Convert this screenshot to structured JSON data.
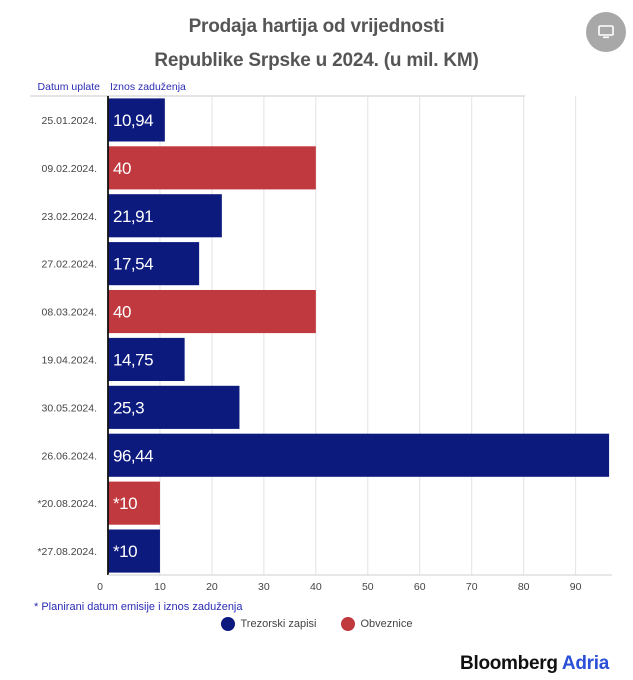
{
  "title": {
    "line1": "Prodaja hartija od vrijednosti",
    "line2": "Republike Srpske u 2024. (u mil. KM)"
  },
  "menu": {
    "icon": "monitor-icon"
  },
  "chart_data": {
    "type": "bar",
    "orientation": "horizontal",
    "col_header_category": "Datum uplate",
    "col_header_value": "Iznos zaduženja",
    "categories": [
      "25.01.2024.",
      "09.02.2024.",
      "23.02.2024.",
      "27.02.2024.",
      "08.03.2024.",
      "19.04.2024.",
      "30.05.2024.",
      "26.06.2024.",
      "*20.08.2024.",
      "*27.08.2024."
    ],
    "values": [
      10.94,
      40,
      21.91,
      17.54,
      40,
      14.75,
      25.3,
      96.44,
      10,
      10
    ],
    "value_labels": [
      "10,94",
      "40",
      "21,91",
      "17,54",
      "40",
      "14,75",
      "25,3",
      "96,44",
      "*10",
      "*10"
    ],
    "series_type": [
      "trezor",
      "obveznice",
      "trezor",
      "trezor",
      "obveznice",
      "trezor",
      "trezor",
      "trezor",
      "obveznice",
      "trezor"
    ],
    "xlim": [
      0,
      97
    ],
    "xticks": [
      0,
      10,
      20,
      30,
      40,
      50,
      60,
      70,
      80,
      90
    ],
    "grid": true,
    "colors": {
      "trezor": "#0c1a7e",
      "obveznice": "#c0393e"
    }
  },
  "legend": [
    {
      "key": "trezor",
      "label": "Trezorski zapisi",
      "color": "#0c1a7e"
    },
    {
      "key": "obveznice",
      "label": "Obveznice",
      "color": "#c0393e"
    }
  ],
  "footnote": "* Planirani datum emisije i iznos zaduženja",
  "brand": {
    "name": "Bloomberg",
    "accent": "Adria"
  }
}
